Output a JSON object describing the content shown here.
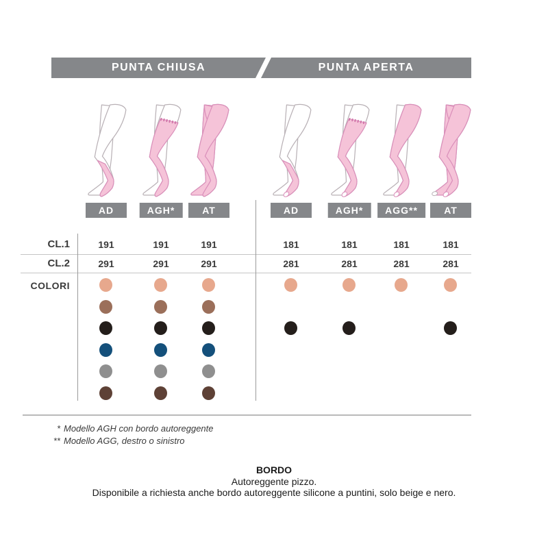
{
  "header": {
    "left_title": "PUNTA CHIUSA",
    "right_title": "PUNTA APERTA",
    "bar_color": "#85878a",
    "text_color": "#ffffff"
  },
  "row_labels": {
    "cl1": "CL.1",
    "cl2": "CL.2",
    "colors": "COLORI"
  },
  "groups": [
    {
      "id": "punta-chiusa",
      "title": "PUNTA CHIUSA",
      "models": [
        {
          "label": "AD",
          "type": "ad",
          "toe": "closed",
          "cl1": "191",
          "cl2": "291",
          "colors": [
            0,
            1,
            2,
            3,
            4,
            5
          ]
        },
        {
          "label": "AGH*",
          "type": "agh",
          "toe": "closed",
          "cl1": "191",
          "cl2": "291",
          "colors": [
            0,
            1,
            2,
            3,
            4,
            5
          ]
        },
        {
          "label": "AT",
          "type": "at",
          "toe": "closed",
          "cl1": "191",
          "cl2": "291",
          "colors": [
            0,
            1,
            2,
            3,
            4,
            5
          ]
        }
      ]
    },
    {
      "id": "punta-aperta",
      "title": "PUNTA APERTA",
      "models": [
        {
          "label": "AD",
          "type": "ad",
          "toe": "open",
          "cl1": "181",
          "cl2": "281",
          "colors": [
            0,
            2
          ]
        },
        {
          "label": "AGH*",
          "type": "agh",
          "toe": "open",
          "cl1": "181",
          "cl2": "281",
          "colors": [
            0,
            2
          ]
        },
        {
          "label": "AGG**",
          "type": "agg",
          "toe": "open",
          "cl1": "181",
          "cl2": "281",
          "colors": [
            0
          ]
        },
        {
          "label": "AT",
          "type": "at",
          "toe": "open",
          "cl1": "181",
          "cl2": "281",
          "colors": [
            0,
            2
          ]
        }
      ]
    }
  ],
  "palette": [
    {
      "name": "beige",
      "hex": "#e7a88d"
    },
    {
      "name": "light-brown",
      "hex": "#9b6f5a"
    },
    {
      "name": "black",
      "hex": "#241e1b"
    },
    {
      "name": "navy-blue",
      "hex": "#14507b"
    },
    {
      "name": "grey",
      "hex": "#8f8f8f"
    },
    {
      "name": "dark-brown",
      "hex": "#5e4136"
    }
  ],
  "footnotes": [
    {
      "marker": "*",
      "text": "Modello AGH con bordo autoreggente"
    },
    {
      "marker": "**",
      "text": "Modello AGG, destro o sinistro"
    }
  ],
  "bordo": {
    "title": "BORDO",
    "line1": "Autoreggente pizzo.",
    "line2": "Disponibile a richiesta anche bordo autoreggente silicone a puntini, solo beige e nero."
  },
  "illustration": {
    "stocking_fill": "#f5c3d8",
    "stocking_outline": "#da8fba",
    "lace_dot_color": "#cf6fa6",
    "skin_outline": "#b8b0b5"
  }
}
